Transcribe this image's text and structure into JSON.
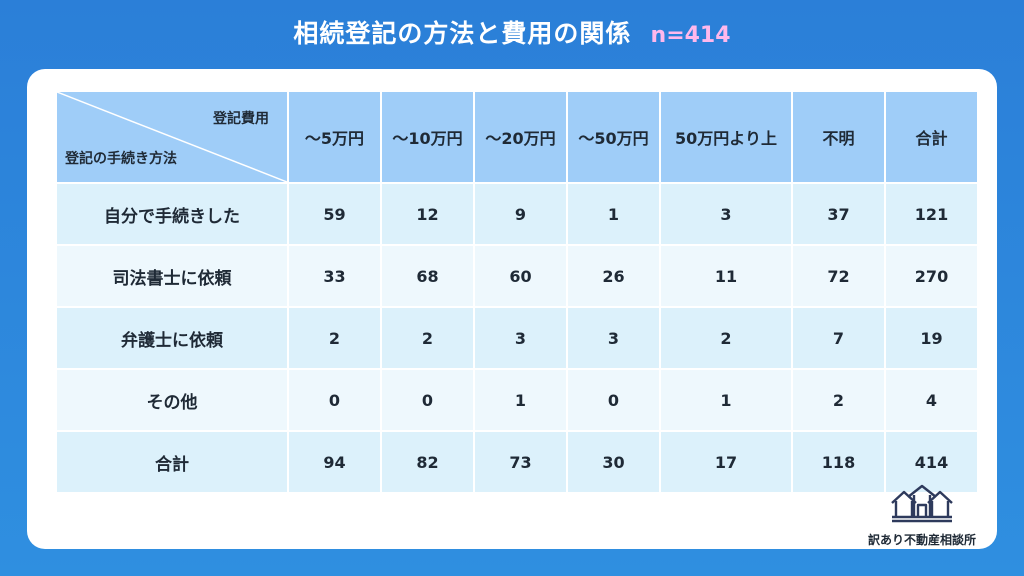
{
  "header": {
    "title": "相続登記の方法と費用の関係",
    "sample": "n=414"
  },
  "table": {
    "corner_top": "登記費用",
    "corner_bottom": "登記の手続き方法",
    "columns": [
      "～5万円",
      "～10万円",
      "～20万円",
      "～50万円",
      "50万円より上",
      "不明",
      "合計"
    ],
    "rows": [
      {
        "label": "自分で手続きした",
        "values": [
          "59",
          "12",
          "9",
          "1",
          "3",
          "37",
          "121"
        ]
      },
      {
        "label": "司法書士に依頼",
        "values": [
          "33",
          "68",
          "60",
          "26",
          "11",
          "72",
          "270"
        ]
      },
      {
        "label": "弁護士に依頼",
        "values": [
          "2",
          "2",
          "3",
          "3",
          "2",
          "7",
          "19"
        ]
      },
      {
        "label": "その他",
        "values": [
          "0",
          "0",
          "1",
          "0",
          "1",
          "2",
          "4"
        ]
      },
      {
        "label": "合計",
        "values": [
          "94",
          "82",
          "73",
          "30",
          "17",
          "118",
          "414"
        ]
      }
    ]
  },
  "logo": {
    "text": "訳あり不動産相談所",
    "icon": "houses-logo-icon"
  },
  "colors": {
    "background": "#2b7fd8",
    "header_cell": "#9fcdf8",
    "row_odd": "#dcf1fb",
    "row_even": "#eef8fd",
    "sample_text": "#ffb8ec"
  },
  "chart_data": {
    "type": "table",
    "title": "相続登記の方法と費用の関係",
    "subtitle": "n=414",
    "column_header": "登記費用",
    "row_header": "登記の手続き方法",
    "columns": [
      "～5万円",
      "～10万円",
      "～20万円",
      "～50万円",
      "50万円より上",
      "不明",
      "合計"
    ],
    "rows": [
      "自分で手続きした",
      "司法書士に依頼",
      "弁護士に依頼",
      "その他",
      "合計"
    ],
    "values": [
      [
        59,
        12,
        9,
        1,
        3,
        37,
        121
      ],
      [
        33,
        68,
        60,
        26,
        11,
        72,
        270
      ],
      [
        2,
        2,
        3,
        3,
        2,
        7,
        19
      ],
      [
        0,
        0,
        1,
        0,
        1,
        2,
        4
      ],
      [
        94,
        82,
        73,
        30,
        17,
        118,
        414
      ]
    ]
  }
}
